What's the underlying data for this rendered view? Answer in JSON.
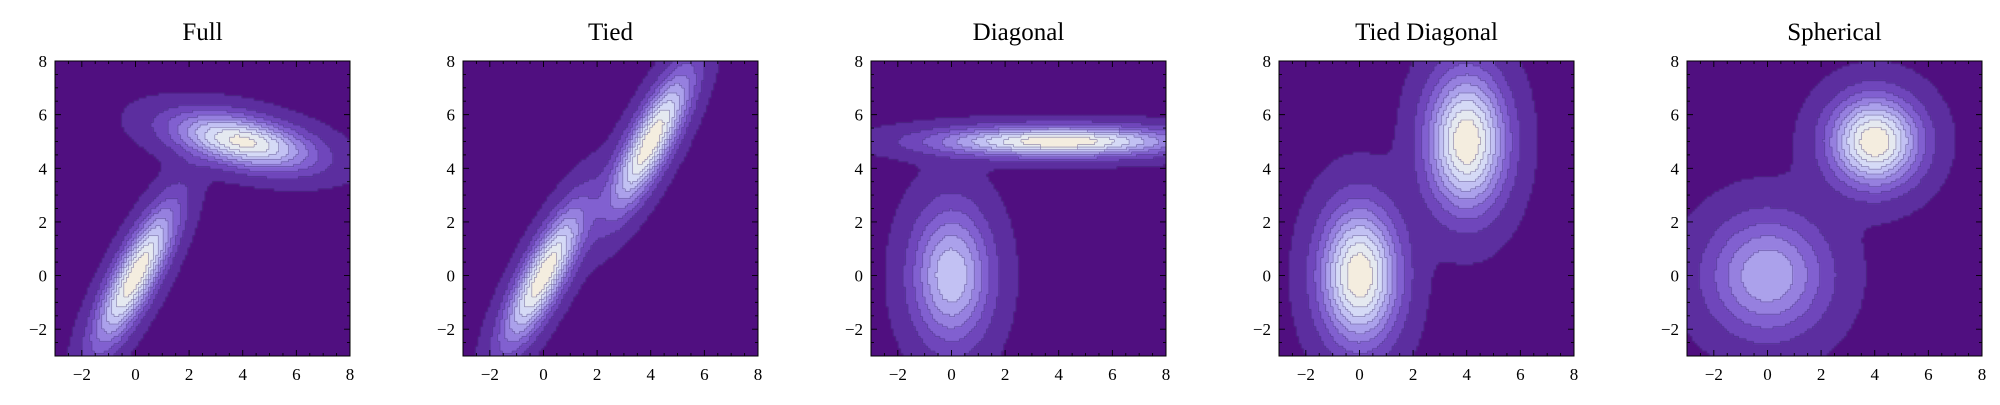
{
  "colors": {
    "background": "#500f80",
    "contour_palette": [
      "#500f80",
      "#5c2e9f",
      "#6f46bb",
      "#8160d0",
      "#9680df",
      "#aba1eb",
      "#c2c1f3",
      "#d5daf6",
      "#e5e9f0",
      "#f4eddf"
    ],
    "contour_line": "#3a2a70",
    "frame": "#000000"
  },
  "chart_data": [
    {
      "type": "contour",
      "title": "Full",
      "xlabel": "",
      "ylabel": "",
      "xlim": [
        -3,
        8
      ],
      "ylim": [
        -3,
        8
      ],
      "xticks": [
        -2,
        0,
        2,
        4,
        6,
        8
      ],
      "yticks": [
        -2,
        0,
        2,
        4,
        6,
        8
      ],
      "components": [
        {
          "mean": [
            0,
            0
          ],
          "covariance": [
            [
              1.0,
              1.4
            ],
            [
              1.4,
              3.0
            ]
          ],
          "weight": 0.5
        },
        {
          "mean": [
            4,
            5
          ],
          "covariance": [
            [
              3.0,
              -0.55
            ],
            [
              -0.55,
              0.5
            ]
          ],
          "weight": 0.5
        }
      ]
    },
    {
      "type": "contour",
      "title": "Tied",
      "xlabel": "",
      "ylabel": "",
      "xlim": [
        -3,
        8
      ],
      "ylim": [
        -3,
        8
      ],
      "xticks": [
        -2,
        0,
        2,
        4,
        6,
        8
      ],
      "yticks": [
        -2,
        0,
        2,
        4,
        6,
        8
      ],
      "components": [
        {
          "mean": [
            0,
            0
          ],
          "covariance": [
            [
              1.0,
              1.4
            ],
            [
              1.4,
              3.0
            ]
          ],
          "weight": 0.5
        },
        {
          "mean": [
            4,
            5
          ],
          "covariance": [
            [
              1.0,
              1.4
            ],
            [
              1.4,
              3.0
            ]
          ],
          "weight": 0.5
        }
      ]
    },
    {
      "type": "contour",
      "title": "Diagonal",
      "xlabel": "",
      "ylabel": "",
      "xlim": [
        -3,
        8
      ],
      "ylim": [
        -3,
        8
      ],
      "xticks": [
        -2,
        0,
        2,
        4,
        6,
        8
      ],
      "yticks": [
        -2,
        0,
        2,
        4,
        6,
        8
      ],
      "components": [
        {
          "mean": [
            0,
            0
          ],
          "covariance": [
            [
              1.0,
              0
            ],
            [
              0,
              3.0
            ]
          ],
          "weight": 0.5
        },
        {
          "mean": [
            4,
            5
          ],
          "covariance": [
            [
              9.0,
              0
            ],
            [
              0,
              0.15
            ]
          ],
          "weight": 0.5
        }
      ]
    },
    {
      "type": "contour",
      "title": "Tied Diagonal",
      "xlabel": "",
      "ylabel": "",
      "xlim": [
        -3,
        8
      ],
      "ylim": [
        -3,
        8
      ],
      "xticks": [
        -2,
        0,
        2,
        4,
        6,
        8
      ],
      "yticks": [
        -2,
        0,
        2,
        4,
        6,
        8
      ],
      "components": [
        {
          "mean": [
            0,
            0
          ],
          "covariance": [
            [
              1.0,
              0
            ],
            [
              0,
              3.0
            ]
          ],
          "weight": 0.5
        },
        {
          "mean": [
            4,
            5
          ],
          "covariance": [
            [
              1.0,
              0
            ],
            [
              0,
              3.0
            ]
          ],
          "weight": 0.5
        }
      ]
    },
    {
      "type": "contour",
      "title": "Spherical",
      "xlabel": "",
      "ylabel": "",
      "xlim": [
        -3,
        8
      ],
      "ylim": [
        -3,
        8
      ],
      "xticks": [
        -2,
        0,
        2,
        4,
        6,
        8
      ],
      "yticks": [
        -2,
        0,
        2,
        4,
        6,
        8
      ],
      "components": [
        {
          "mean": [
            0,
            0
          ],
          "covariance": [
            [
              2.3,
              0
            ],
            [
              0,
              2.3
            ]
          ],
          "weight": 0.5
        },
        {
          "mean": [
            4,
            5
          ],
          "covariance": [
            [
              1.3,
              0
            ],
            [
              0,
              1.3
            ]
          ],
          "weight": 0.5
        }
      ]
    }
  ]
}
